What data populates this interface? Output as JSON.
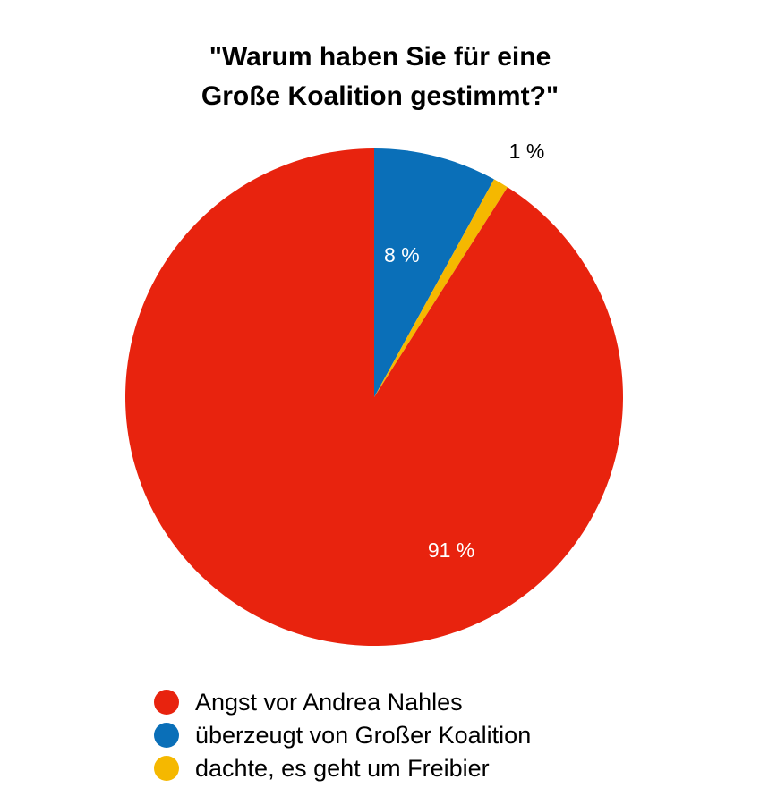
{
  "chart_data": {
    "type": "pie",
    "title": "\"Warum haben Sie für eine Große Koalition gestimmt?\"",
    "title_lines": [
      "\"Warum haben Sie für eine",
      "Große Koalition gestimmt?\""
    ],
    "slices": [
      {
        "name": "Angst vor Andrea Nahles",
        "value": 91,
        "label": "91 %",
        "color": "#e8230e",
        "label_color": "#ffffff"
      },
      {
        "name": "überzeugt von Großer Koalition",
        "value": 8,
        "label": "8 %",
        "color": "#0a6fb8",
        "label_color": "#ffffff"
      },
      {
        "name": "dachte, es geht um Freibier",
        "value": 1,
        "label": "1 %",
        "color": "#f5b800",
        "label_color": "#000000"
      }
    ],
    "legend_placement": "bottom",
    "start_angle": "12 o'clock",
    "direction": "clockwise",
    "slice_order_in_pie": [
      "überzeugt von Großer Koalition",
      "dachte, es geht um Freibier",
      "Angst vor Andrea Nahles"
    ]
  }
}
